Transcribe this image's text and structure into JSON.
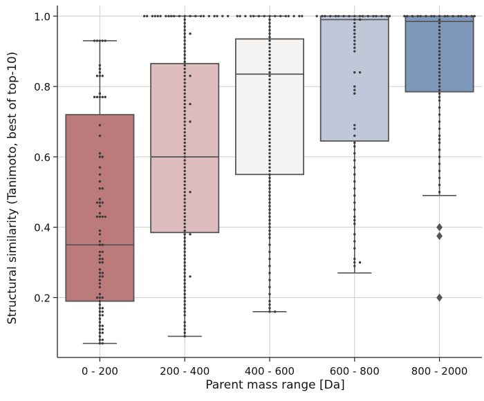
{
  "chart_data": {
    "type": "boxplot",
    "xlabel": "Parent mass range  [Da]",
    "ylabel": "Structural similarity (Tanimoto, best of top-10)",
    "ylim": [
      0.03,
      1.03
    ],
    "yticks": [
      0.2,
      0.4,
      0.6,
      0.8,
      1.0
    ],
    "ytick_labels": [
      "0.2",
      "0.4",
      "0.6",
      "0.8",
      "1.0"
    ],
    "grid": true,
    "categories": [
      "0 - 200",
      "200 - 400",
      "400 - 600",
      "600 - 800",
      "800 - 2000"
    ],
    "colors": [
      "#bc7b7b",
      "#dcbcbc",
      "#f6f3f3",
      "#bfc7d8",
      "#7f97ba"
    ],
    "boxes": [
      {
        "category": "0 - 200",
        "whisker_low": 0.07,
        "q1": 0.19,
        "median": 0.35,
        "q3": 0.72,
        "whisker_high": 0.93,
        "outliers": []
      },
      {
        "category": "200 - 400",
        "whisker_low": 0.09,
        "q1": 0.385,
        "median": 0.6,
        "q3": 0.865,
        "whisker_high": 1.0,
        "outliers": []
      },
      {
        "category": "400 - 600",
        "whisker_low": 0.16,
        "q1": 0.55,
        "median": 0.835,
        "q3": 0.935,
        "whisker_high": 1.0,
        "outliers": []
      },
      {
        "category": "600 - 800",
        "whisker_low": 0.27,
        "q1": 0.645,
        "median": 0.99,
        "q3": 1.0,
        "whisker_high": 1.0,
        "outliers": []
      },
      {
        "category": "800 - 2000",
        "whisker_low": 0.49,
        "q1": 0.785,
        "median": 0.985,
        "q3": 1.0,
        "whisker_high": 1.0,
        "outliers": [
          0.4,
          0.375,
          0.2
        ]
      }
    ],
    "swarm_points": [
      {
        "category": "0 - 200",
        "values": [
          0.93,
          0.93,
          0.93,
          0.93,
          0.93,
          0.86,
          0.85,
          0.84,
          0.83,
          0.83,
          0.83,
          0.78,
          0.77,
          0.77,
          0.77,
          0.77,
          0.77,
          0.69,
          0.66,
          0.61,
          0.6,
          0.6,
          0.57,
          0.55,
          0.53,
          0.51,
          0.51,
          0.48,
          0.47,
          0.47,
          0.47,
          0.46,
          0.44,
          0.43,
          0.43,
          0.43,
          0.43,
          0.39,
          0.38,
          0.36,
          0.35,
          0.35,
          0.33,
          0.33,
          0.32,
          0.31,
          0.31,
          0.3,
          0.3,
          0.28,
          0.27,
          0.27,
          0.26,
          0.26,
          0.25,
          0.24,
          0.23,
          0.21,
          0.2,
          0.2,
          0.2,
          0.19,
          0.18,
          0.17,
          0.17,
          0.16,
          0.16,
          0.15,
          0.15,
          0.14,
          0.13,
          0.12,
          0.12,
          0.11,
          0.11,
          0.1,
          0.1,
          0.09,
          0.08,
          0.08,
          0.07,
          0.07
        ]
      },
      {
        "category": "200 - 400",
        "values": [
          1.0,
          1.0,
          1.0,
          1.0,
          1.0,
          1.0,
          1.0,
          1.0,
          1.0,
          1.0,
          1.0,
          1.0,
          1.0,
          1.0,
          1.0,
          1.0,
          1.0,
          1.0,
          1.0,
          1.0,
          1.0,
          0.99,
          0.98,
          0.97,
          0.96,
          0.95,
          0.95,
          0.94,
          0.93,
          0.92,
          0.91,
          0.9,
          0.89,
          0.88,
          0.87,
          0.86,
          0.85,
          0.84,
          0.83,
          0.83,
          0.82,
          0.81,
          0.8,
          0.79,
          0.78,
          0.77,
          0.76,
          0.75,
          0.75,
          0.74,
          0.73,
          0.72,
          0.71,
          0.7,
          0.7,
          0.69,
          0.68,
          0.67,
          0.66,
          0.65,
          0.64,
          0.63,
          0.62,
          0.61,
          0.6,
          0.59,
          0.58,
          0.57,
          0.56,
          0.55,
          0.54,
          0.53,
          0.52,
          0.51,
          0.5,
          0.5,
          0.49,
          0.48,
          0.47,
          0.46,
          0.45,
          0.44,
          0.43,
          0.42,
          0.41,
          0.4,
          0.39,
          0.38,
          0.38,
          0.37,
          0.36,
          0.35,
          0.34,
          0.33,
          0.32,
          0.31,
          0.3,
          0.29,
          0.28,
          0.27,
          0.26,
          0.26,
          0.25,
          0.24,
          0.23,
          0.22,
          0.21,
          0.2,
          0.19,
          0.18,
          0.17,
          0.16,
          0.15,
          0.13,
          0.12,
          0.11,
          0.1,
          0.09
        ]
      },
      {
        "category": "400 - 600",
        "values": [
          1.0,
          1.0,
          1.0,
          1.0,
          1.0,
          1.0,
          1.0,
          1.0,
          1.0,
          1.0,
          1.0,
          1.0,
          1.0,
          1.0,
          1.0,
          0.99,
          0.98,
          0.97,
          0.96,
          0.95,
          0.94,
          0.93,
          0.92,
          0.91,
          0.9,
          0.89,
          0.88,
          0.87,
          0.86,
          0.85,
          0.84,
          0.83,
          0.82,
          0.81,
          0.8,
          0.79,
          0.78,
          0.77,
          0.76,
          0.75,
          0.74,
          0.73,
          0.72,
          0.71,
          0.7,
          0.69,
          0.68,
          0.67,
          0.66,
          0.65,
          0.64,
          0.63,
          0.62,
          0.61,
          0.6,
          0.59,
          0.58,
          0.57,
          0.56,
          0.55,
          0.54,
          0.53,
          0.52,
          0.51,
          0.5,
          0.49,
          0.48,
          0.47,
          0.46,
          0.45,
          0.44,
          0.43,
          0.42,
          0.41,
          0.4,
          0.39,
          0.38,
          0.37,
          0.35,
          0.33,
          0.31,
          0.29,
          0.27,
          0.25,
          0.23,
          0.21,
          0.19,
          0.18,
          0.17,
          0.16,
          0.16
        ]
      },
      {
        "category": "600 - 800",
        "values": [
          1.0,
          1.0,
          1.0,
          1.0,
          1.0,
          1.0,
          1.0,
          1.0,
          1.0,
          1.0,
          1.0,
          1.0,
          1.0,
          1.0,
          1.0,
          1.0,
          1.0,
          0.99,
          0.99,
          0.98,
          0.97,
          0.96,
          0.95,
          0.94,
          0.93,
          0.92,
          0.91,
          0.9,
          0.84,
          0.84,
          0.8,
          0.79,
          0.78,
          0.69,
          0.68,
          0.66,
          0.64,
          0.63,
          0.61,
          0.59,
          0.57,
          0.55,
          0.53,
          0.51,
          0.49,
          0.47,
          0.45,
          0.43,
          0.42,
          0.41,
          0.38,
          0.36,
          0.34,
          0.31,
          0.3,
          0.3,
          0.29
        ]
      },
      {
        "category": "800 - 2000",
        "values": [
          1.0,
          1.0,
          1.0,
          1.0,
          1.0,
          1.0,
          1.0,
          1.0,
          1.0,
          1.0,
          1.0,
          1.0,
          1.0,
          1.0,
          1.0,
          1.0,
          1.0,
          0.99,
          0.98,
          0.97,
          0.96,
          0.95,
          0.94,
          0.93,
          0.92,
          0.91,
          0.9,
          0.89,
          0.88,
          0.87,
          0.86,
          0.85,
          0.84,
          0.83,
          0.82,
          0.81,
          0.8,
          0.79,
          0.78,
          0.77,
          0.76,
          0.74,
          0.72,
          0.7,
          0.68,
          0.66,
          0.65,
          0.64,
          0.62,
          0.6,
          0.58,
          0.56,
          0.54,
          0.52,
          0.5
        ]
      }
    ]
  }
}
